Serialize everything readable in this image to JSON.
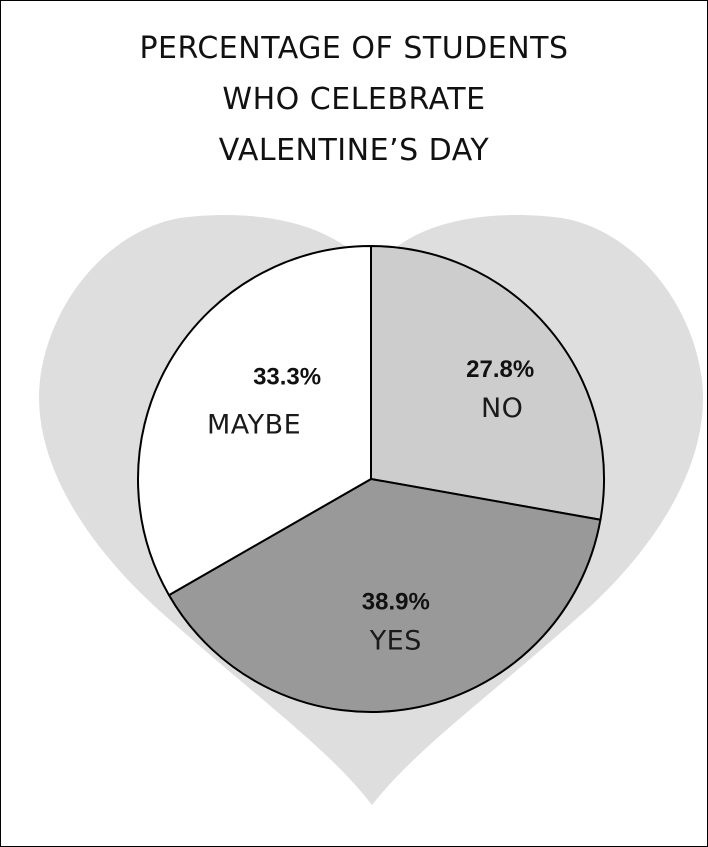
{
  "chart_data": {
    "type": "pie",
    "title_lines": [
      "PERCENTAGE OF STUDENTS",
      "WHO CELEBRATE",
      "VALENTINE’S DAY"
    ],
    "slices": [
      {
        "label": "NO",
        "value": 27.8,
        "value_label": "27.8%",
        "color": "#cdcdcd"
      },
      {
        "label": "YES",
        "value": 38.9,
        "value_label": "38.9%",
        "color": "#999999"
      },
      {
        "label": "MAYBE",
        "value": 33.3,
        "value_label": "33.3%",
        "color": "#ffffff"
      }
    ],
    "start": "12 o'clock",
    "direction": "clockwise",
    "background_shape": "heart",
    "colors": {
      "heart": "#dedede",
      "outline": "#000000"
    }
  }
}
